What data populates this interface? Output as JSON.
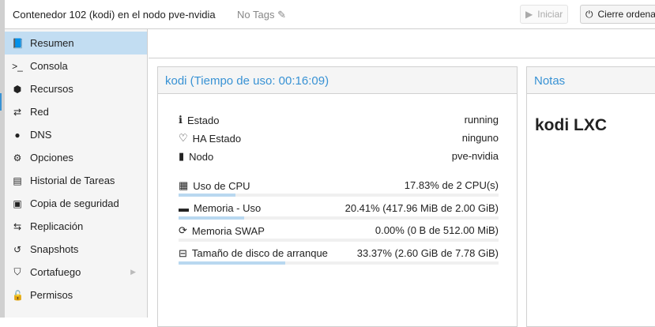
{
  "header": {
    "title": "Contenedor 102 (kodi) en el nodo pve-nvidia",
    "tags": "No Tags",
    "start_label": "Iniciar",
    "shutdown_label": "Cierre ordena"
  },
  "sidebar": {
    "items": [
      {
        "label": "Resumen",
        "icon": "book-icon",
        "glyph": "📘",
        "active": true
      },
      {
        "label": "Consola",
        "icon": "terminal-icon",
        "glyph": ">_"
      },
      {
        "label": "Recursos",
        "icon": "cube-icon",
        "glyph": "⬢"
      },
      {
        "label": "Red",
        "icon": "exchange-icon",
        "glyph": "⇄"
      },
      {
        "label": "DNS",
        "icon": "globe-icon",
        "glyph": "●"
      },
      {
        "label": "Opciones",
        "icon": "gear-icon",
        "glyph": "⚙"
      },
      {
        "label": "Historial de Tareas",
        "icon": "list-icon",
        "glyph": "▤"
      },
      {
        "label": "Copia de seguridad",
        "icon": "floppy-icon",
        "glyph": "▣"
      },
      {
        "label": "Replicación",
        "icon": "retweet-icon",
        "glyph": "⇆"
      },
      {
        "label": "Snapshots",
        "icon": "history-icon",
        "glyph": "↺"
      },
      {
        "label": "Cortafuego",
        "icon": "shield-icon",
        "glyph": "⛉",
        "submenu": true
      },
      {
        "label": "Permisos",
        "icon": "unlock-icon",
        "glyph": "🔓"
      }
    ]
  },
  "status": {
    "title": "kodi (Tiempo de uso: 00:16:09)",
    "info": [
      {
        "label": "Estado",
        "value": "running",
        "icon": "info-icon",
        "glyph": "ℹ"
      },
      {
        "label": "HA Estado",
        "value": "ninguno",
        "icon": "heartbeat-icon",
        "glyph": "♡"
      },
      {
        "label": "Nodo",
        "value": "pve-nvidia",
        "icon": "server-icon",
        "glyph": "▮"
      }
    ],
    "usage": [
      {
        "label": "Uso de CPU",
        "value": "17.83% de 2 CPU(s)",
        "percent": 17.83,
        "icon": "cpu-icon",
        "glyph": "▦"
      },
      {
        "label": "Memoria - Uso",
        "value": "20.41% (417.96 MiB de 2.00 GiB)",
        "percent": 20.41,
        "icon": "memory-icon",
        "glyph": "▬"
      },
      {
        "label": "Memoria SWAP",
        "value": "0.00% (0 B de 512.00 MiB)",
        "percent": 0,
        "icon": "refresh-icon",
        "glyph": "⟳"
      },
      {
        "label": "Tamaño de disco de arranque",
        "value": "33.37% (2.60 GiB de 7.78 GiB)",
        "percent": 33.37,
        "icon": "hdd-icon",
        "glyph": "⊟"
      }
    ]
  },
  "notes": {
    "title": "Notas",
    "content": "kodi LXC"
  }
}
